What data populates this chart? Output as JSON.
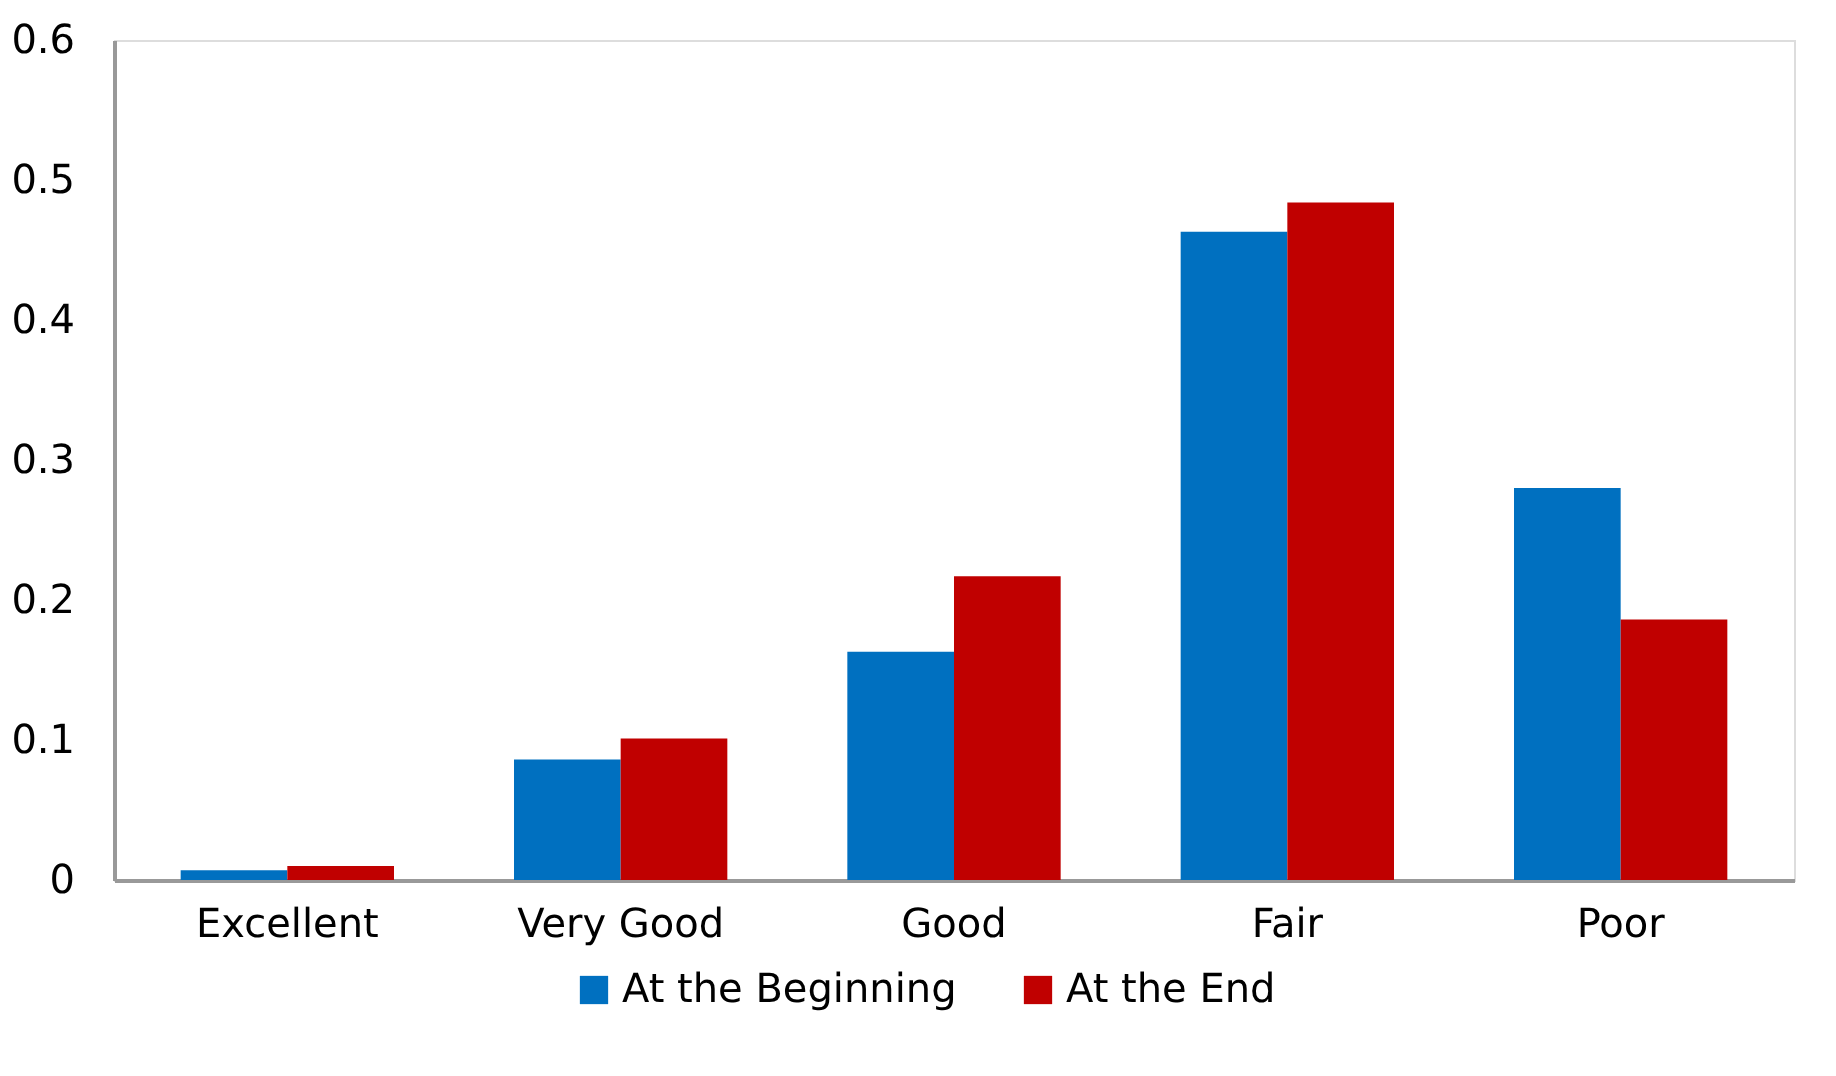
{
  "chart_data": {
    "type": "bar",
    "categories": [
      "Excellent",
      "Very Good",
      "Good",
      "Fair",
      "Poor"
    ],
    "series": [
      {
        "name": "At the Beginning",
        "color": "#0070c0",
        "values": [
          0.007,
          0.086,
          0.163,
          0.463,
          0.28
        ]
      },
      {
        "name": "At the End",
        "color": "#c00000",
        "values": [
          0.01,
          0.101,
          0.217,
          0.484,
          0.186
        ]
      }
    ],
    "ylim": [
      0,
      0.6
    ],
    "yticks": [
      0,
      0.1,
      0.2,
      0.3,
      0.4,
      0.5,
      0.6
    ],
    "grid": false,
    "legend": "bottom"
  }
}
